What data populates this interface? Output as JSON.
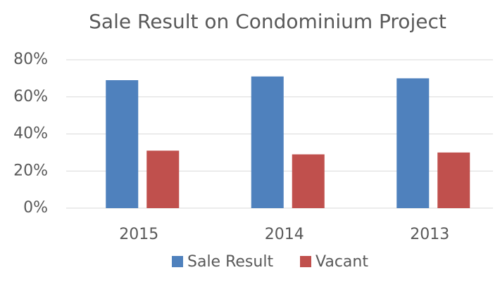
{
  "chart_data": {
    "type": "bar",
    "title": "Sale Result on Condominium Project",
    "categories": [
      "2015",
      "2014",
      "2013"
    ],
    "series": [
      {
        "name": "Sale Result",
        "color": "#4f81bd",
        "values": [
          69,
          71,
          70
        ]
      },
      {
        "name": "Vacant",
        "color": "#c0504d",
        "values": [
          31,
          29,
          30
        ]
      }
    ],
    "ylim": [
      0,
      80
    ],
    "yticks": [
      {
        "value": 0,
        "label": "0%"
      },
      {
        "value": 20,
        "label": "20%"
      },
      {
        "value": 40,
        "label": "40%"
      },
      {
        "value": 60,
        "label": "60%"
      },
      {
        "value": 80,
        "label": "80%"
      }
    ],
    "grid": true,
    "legend": "bottom"
  }
}
